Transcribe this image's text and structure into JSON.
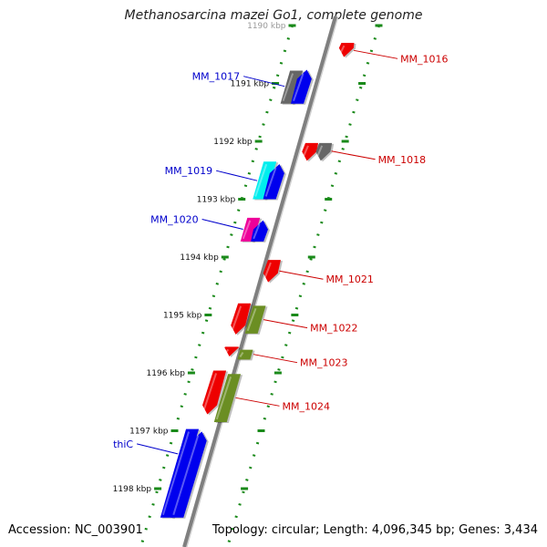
{
  "header": {
    "title": "Methanosarcina mazei Go1, complete genome"
  },
  "footer": {
    "accession": "Accession: NC_003901",
    "summary": "Topology: circular; Length: 4,096,345 bp; Genes: 3,434"
  },
  "colors": {
    "backbone": "#7f7f7f",
    "tick": "#1a8a1a",
    "plus_label": "#0000cc",
    "minus_label": "#cc0000",
    "blue": "#0000ee",
    "red": "#ee0000",
    "gray": "#666666",
    "cyan": "#00eeee",
    "magenta": "#ee0099",
    "olive": "#6b8e23"
  },
  "map": {
    "kbp_ticks": [
      {
        "kbp": 1190,
        "label": "1190 kbp"
      },
      {
        "kbp": 1191,
        "label": "1191 kbp"
      },
      {
        "kbp": 1192,
        "label": "1192 kbp"
      },
      {
        "kbp": 1193,
        "label": "1193 kbp"
      },
      {
        "kbp": 1194,
        "label": "1194 kbp"
      },
      {
        "kbp": 1195,
        "label": "1195 kbp"
      },
      {
        "kbp": 1196,
        "label": "1196 kbp"
      },
      {
        "kbp": 1197,
        "label": "1197 kbp"
      },
      {
        "kbp": 1198,
        "label": "1198 kbp"
      }
    ],
    "features": [
      {
        "ring": -1.0,
        "start": 1190.3,
        "end": 1190.53,
        "color": "red",
        "arrow": "down"
      },
      {
        "ring": 1.5,
        "start": 1190.78,
        "end": 1191.35,
        "color": "gray",
        "arrow": "none"
      },
      {
        "ring": 0.9,
        "start": 1190.78,
        "end": 1191.35,
        "color": "blue",
        "arrow": "up"
      },
      {
        "ring": -0.6,
        "start": 1192.03,
        "end": 1192.32,
        "color": "red",
        "arrow": "down"
      },
      {
        "ring": -1.4,
        "start": 1192.03,
        "end": 1192.32,
        "color": "gray",
        "arrow": "down"
      },
      {
        "ring": 1.5,
        "start": 1192.35,
        "end": 1193.0,
        "color": "cyan",
        "arrow": "none"
      },
      {
        "ring": 0.9,
        "start": 1192.41,
        "end": 1193.0,
        "color": "blue",
        "arrow": "up"
      },
      {
        "ring": 1.5,
        "start": 1193.32,
        "end": 1193.73,
        "color": "magenta",
        "arrow": "none"
      },
      {
        "ring": 0.9,
        "start": 1193.38,
        "end": 1193.73,
        "color": "blue",
        "arrow": "up"
      },
      {
        "ring": -0.4,
        "start": 1194.05,
        "end": 1194.42,
        "color": "red",
        "arrow": "down"
      },
      {
        "ring": 0.6,
        "start": 1194.8,
        "end": 1195.32,
        "color": "red",
        "arrow": "down"
      },
      {
        "ring": -0.3,
        "start": 1194.84,
        "end": 1195.32,
        "color": "olive",
        "arrow": "none"
      },
      {
        "ring": 0.6,
        "start": 1195.55,
        "end": 1195.7,
        "color": "red",
        "arrow": "down"
      },
      {
        "ring": -0.3,
        "start": 1195.6,
        "end": 1195.77,
        "color": "olive",
        "arrow": "none"
      },
      {
        "ring": 0.9,
        "start": 1195.96,
        "end": 1196.7,
        "color": "red",
        "arrow": "down"
      },
      {
        "ring": 0.0,
        "start": 1196.02,
        "end": 1196.85,
        "color": "olive",
        "arrow": "none"
      },
      {
        "ring": 1.5,
        "start": 1196.97,
        "end": 1198.5,
        "color": "blue",
        "arrow": "none"
      },
      {
        "ring": 0.9,
        "start": 1197.03,
        "end": 1198.5,
        "color": "blue",
        "arrow": "up"
      }
    ],
    "callouts": [
      {
        "name": "MM_1016",
        "kbp": 1190.43,
        "ring": -1.0,
        "side": "right"
      },
      {
        "name": "MM_1017",
        "kbp": 1191.05,
        "ring": 1.5,
        "side": "left"
      },
      {
        "name": "MM_1018",
        "kbp": 1192.17,
        "ring": -1.4,
        "side": "right"
      },
      {
        "name": "MM_1019",
        "kbp": 1192.68,
        "ring": 1.5,
        "side": "left"
      },
      {
        "name": "MM_1020",
        "kbp": 1193.52,
        "ring": 1.5,
        "side": "left"
      },
      {
        "name": "MM_1021",
        "kbp": 1194.24,
        "ring": -0.4,
        "side": "right"
      },
      {
        "name": "MM_1022",
        "kbp": 1195.08,
        "ring": -0.3,
        "side": "right"
      },
      {
        "name": "MM_1023",
        "kbp": 1195.68,
        "ring": -0.3,
        "side": "right"
      },
      {
        "name": "MM_1024",
        "kbp": 1196.43,
        "ring": 0.0,
        "side": "right"
      },
      {
        "name": "thiC",
        "kbp": 1197.4,
        "ring": 1.5,
        "side": "left"
      }
    ]
  }
}
